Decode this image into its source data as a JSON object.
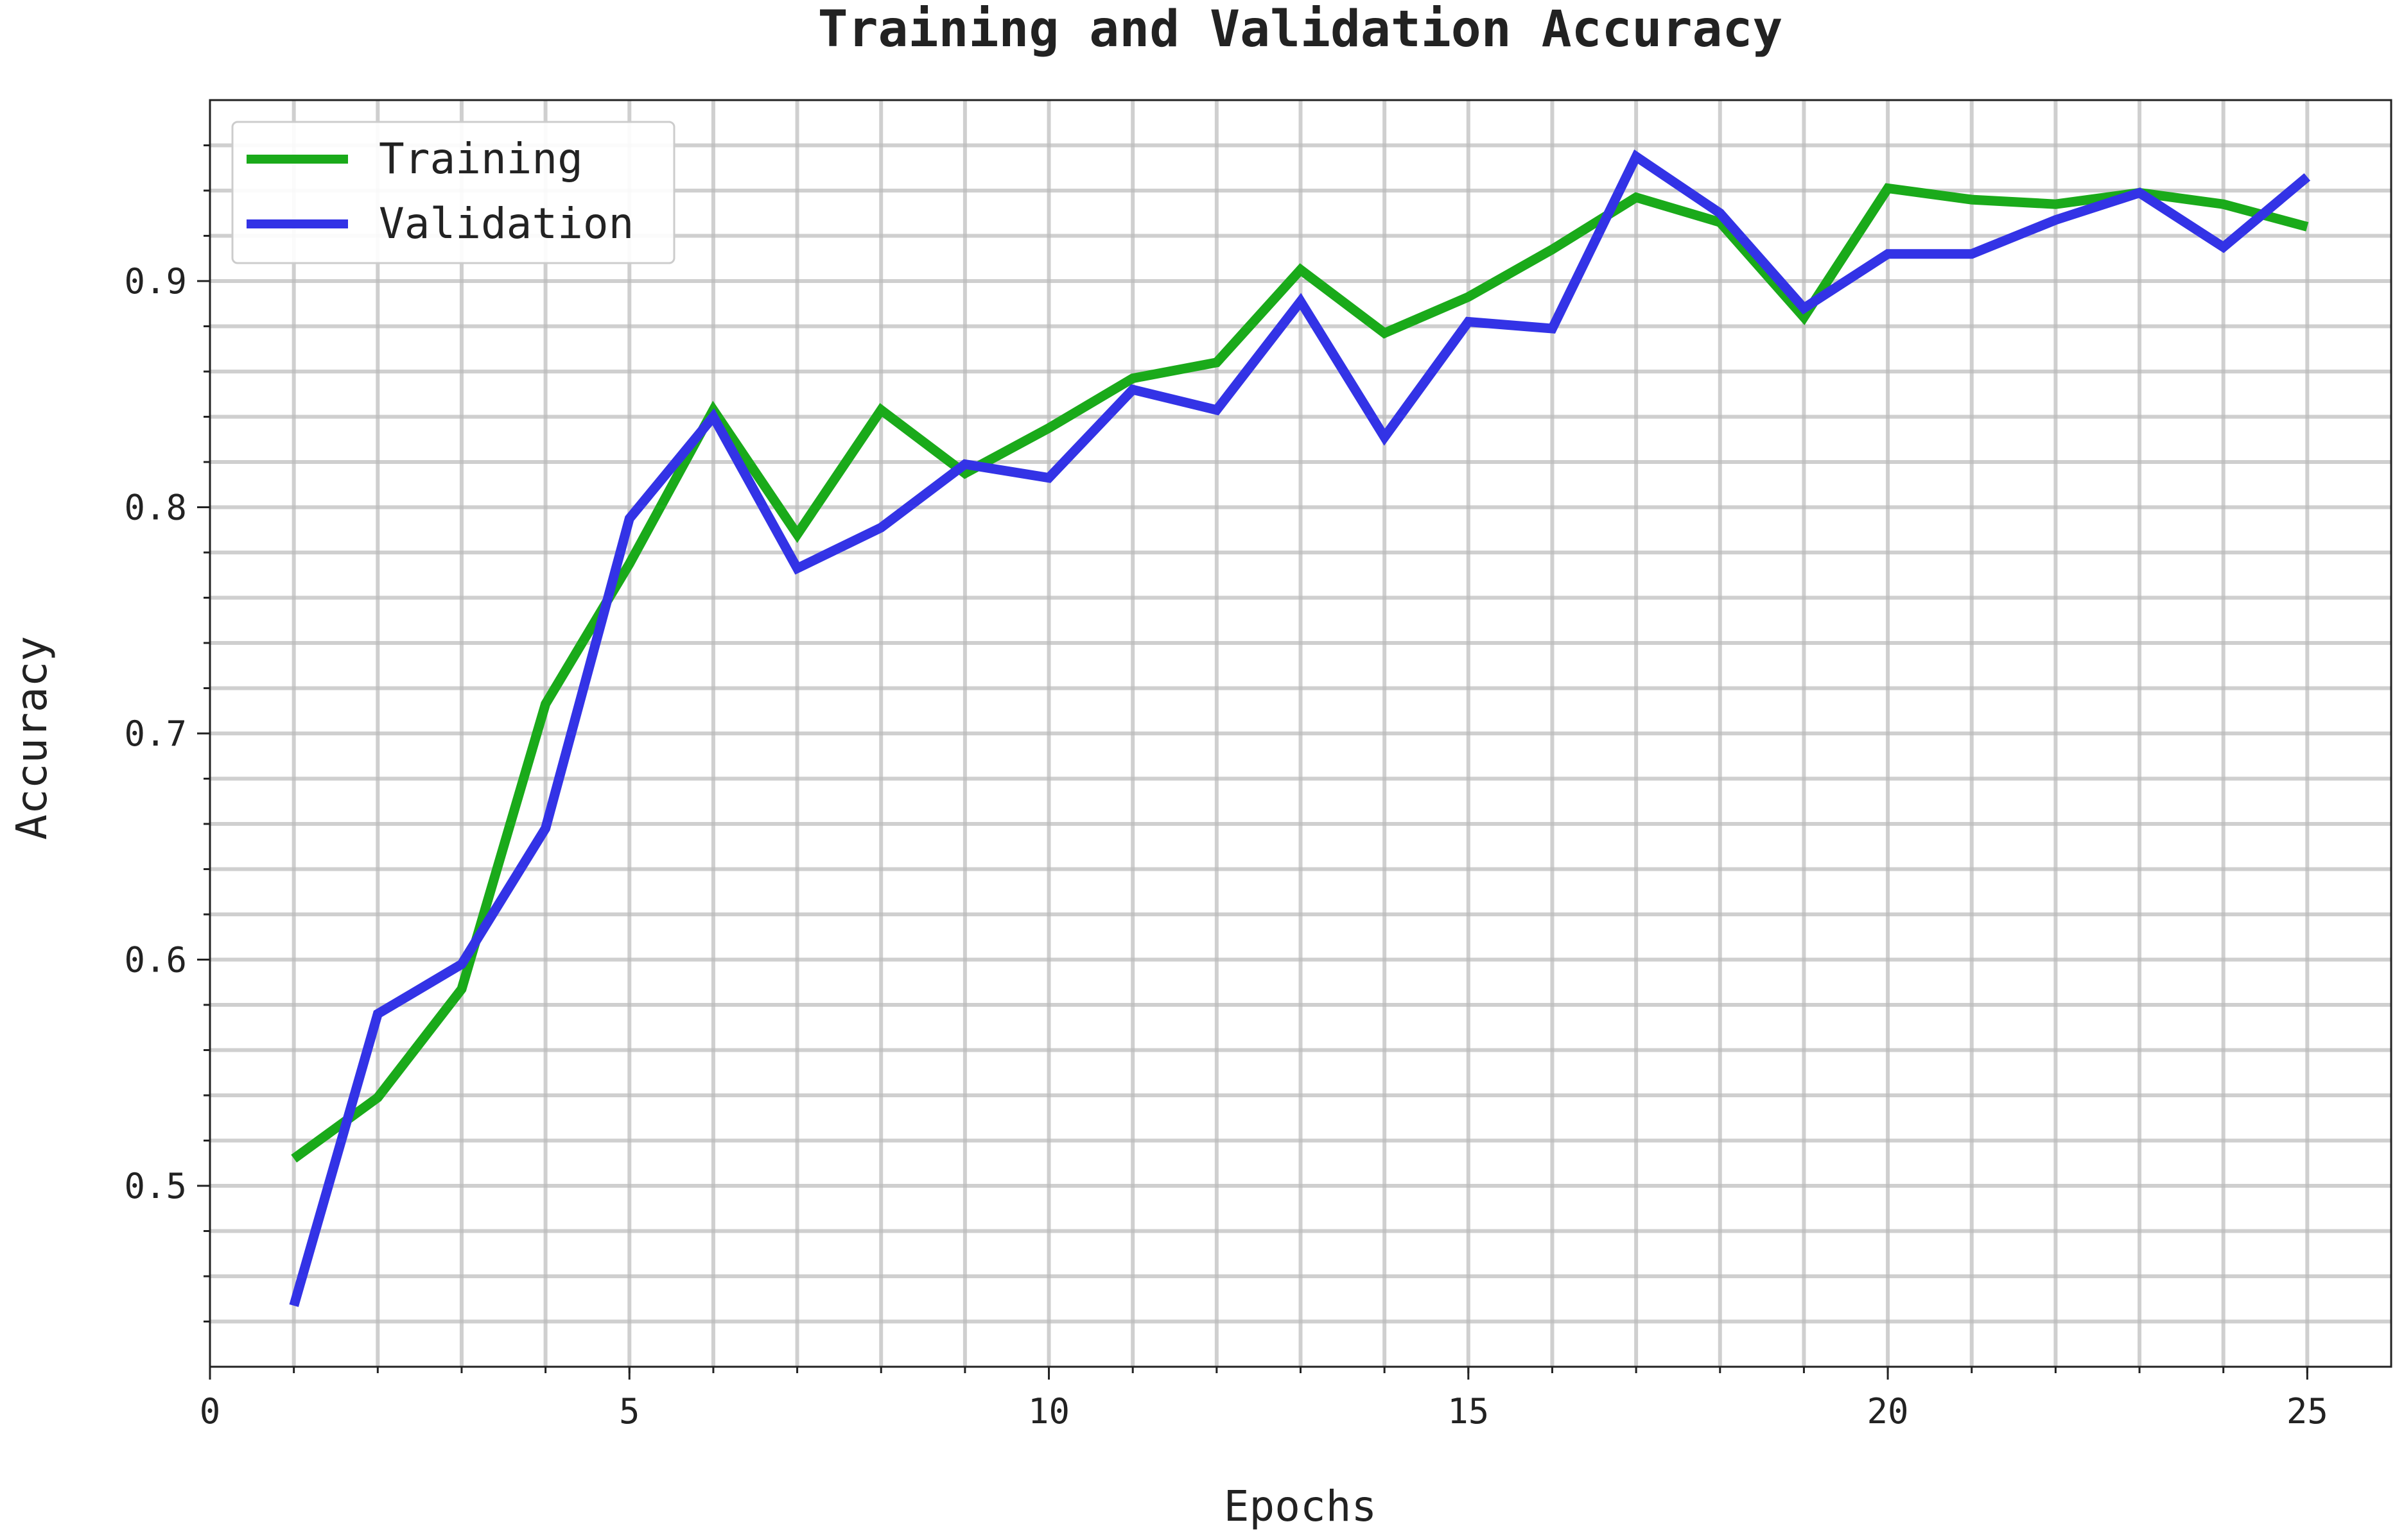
{
  "chart_data": {
    "type": "line",
    "title": "Training and Validation Accuracy",
    "xlabel": "Epochs",
    "ylabel": "Accuracy",
    "xlim": [
      0,
      26
    ],
    "ylim": [
      0.42,
      0.98
    ],
    "xticks": [
      0,
      5,
      10,
      15,
      20,
      25
    ],
    "yticks": [
      0.5,
      0.6,
      0.7,
      0.8,
      0.9
    ],
    "x_minor_step": 1,
    "y_minor_step": 0.02,
    "grid": true,
    "legend_position": "top-left",
    "x": [
      1,
      2,
      3,
      4,
      5,
      6,
      7,
      8,
      9,
      10,
      11,
      12,
      13,
      14,
      15,
      16,
      17,
      18,
      19,
      20,
      21,
      22,
      23,
      24,
      25
    ],
    "series": [
      {
        "name": "Training",
        "color": "#1aaa1a",
        "values": [
          0.512,
          0.539,
          0.587,
          0.713,
          0.775,
          0.843,
          0.788,
          0.843,
          0.815,
          0.835,
          0.857,
          0.864,
          0.905,
          0.877,
          0.893,
          0.914,
          0.937,
          0.926,
          0.884,
          0.941,
          0.936,
          0.934,
          0.939,
          0.934,
          0.924
        ]
      },
      {
        "name": "Validation",
        "color": "#3333e6",
        "values": [
          0.447,
          0.576,
          0.598,
          0.658,
          0.795,
          0.84,
          0.773,
          0.791,
          0.819,
          0.813,
          0.852,
          0.843,
          0.891,
          0.831,
          0.882,
          0.879,
          0.955,
          0.93,
          0.888,
          0.912,
          0.912,
          0.927,
          0.939,
          0.915,
          0.946
        ]
      }
    ]
  }
}
